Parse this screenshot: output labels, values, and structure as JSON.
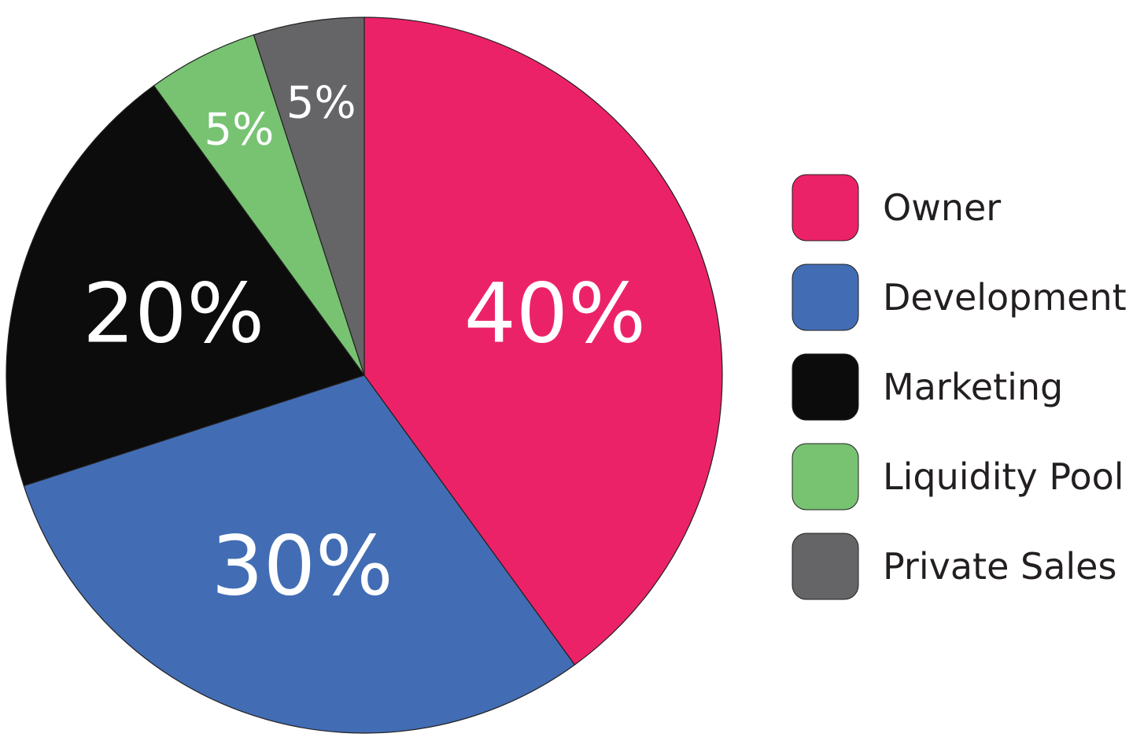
{
  "chart_data": {
    "type": "pie",
    "categories": [
      "Owner",
      "Development",
      "Marketing",
      "Liquidity Pool",
      "Private Sales"
    ],
    "values": [
      40,
      30,
      20,
      5,
      5
    ],
    "value_labels": [
      "40%",
      "30%",
      "20%",
      "5%",
      "5%"
    ],
    "colors": [
      "#ec2269",
      "#426db4",
      "#0b0c0b",
      "#77c372",
      "#656567"
    ],
    "start_angle": 0,
    "direction": "clockwise",
    "legend": "right"
  }
}
